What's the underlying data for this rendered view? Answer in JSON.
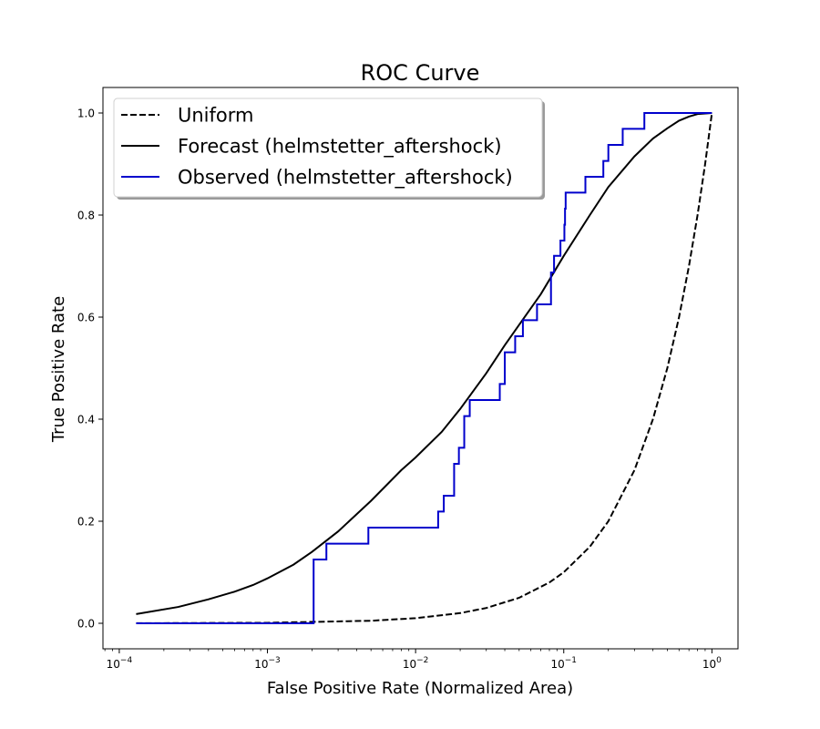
{
  "chart_data": {
    "type": "line",
    "title": "ROC Curve",
    "xlabel": "False Positive Rate (Normalized Area)",
    "ylabel": "True Positive Rate",
    "xscale": "log",
    "xlim": [
      7.76e-05,
      1.5
    ],
    "ylim": [
      -0.05,
      1.05
    ],
    "x_ticks": [
      {
        "value": 0.0001,
        "base": "10",
        "exp": "−4"
      },
      {
        "value": 0.001,
        "base": "10",
        "exp": "−3"
      },
      {
        "value": 0.01,
        "base": "10",
        "exp": "−2"
      },
      {
        "value": 0.1,
        "base": "10",
        "exp": "−1"
      },
      {
        "value": 1,
        "base": "10",
        "exp": "0"
      }
    ],
    "y_ticks": [
      {
        "value": 0.0,
        "label": "0.0"
      },
      {
        "value": 0.2,
        "label": "0.2"
      },
      {
        "value": 0.4,
        "label": "0.4"
      },
      {
        "value": 0.6,
        "label": "0.6"
      },
      {
        "value": 0.8,
        "label": "0.8"
      },
      {
        "value": 1.0,
        "label": "1.0"
      }
    ],
    "grid": false,
    "legend_position": "top-left",
    "series": [
      {
        "name": "Uniform",
        "color": "#000000",
        "dash": "dashed",
        "x": [
          0.00013,
          0.001,
          0.005,
          0.01,
          0.02,
          0.03,
          0.05,
          0.08,
          0.1,
          0.15,
          0.2,
          0.3,
          0.4,
          0.5,
          0.6,
          0.7,
          0.8,
          0.9,
          1.0
        ],
        "y": [
          0.00013,
          0.001,
          0.005,
          0.01,
          0.02,
          0.03,
          0.05,
          0.08,
          0.1,
          0.15,
          0.2,
          0.3,
          0.4,
          0.5,
          0.6,
          0.7,
          0.8,
          0.9,
          1.0
        ]
      },
      {
        "name": "Forecast (helmstetter_aftershock)",
        "color": "#000000",
        "dash": "solid",
        "x": [
          0.00013,
          0.00025,
          0.0004,
          0.0006,
          0.0008,
          0.001,
          0.0015,
          0.002,
          0.003,
          0.005,
          0.008,
          0.01,
          0.015,
          0.02,
          0.03,
          0.04,
          0.05,
          0.07,
          0.1,
          0.15,
          0.2,
          0.3,
          0.4,
          0.5,
          0.6,
          0.7,
          0.8,
          1.0
        ],
        "y": [
          0.018,
          0.032,
          0.047,
          0.062,
          0.075,
          0.088,
          0.115,
          0.14,
          0.18,
          0.24,
          0.3,
          0.325,
          0.375,
          0.42,
          0.49,
          0.545,
          0.585,
          0.645,
          0.72,
          0.8,
          0.855,
          0.915,
          0.95,
          0.97,
          0.985,
          0.993,
          0.998,
          1.0
        ]
      },
      {
        "name": "Observed (helmstetter_aftershock)",
        "color": "#0000cc",
        "dash": "solid",
        "step": true,
        "x": [
          0.00013,
          0.00205,
          0.0025,
          0.0048,
          0.0142,
          0.0155,
          0.0182,
          0.0196,
          0.0213,
          0.0232,
          0.0238,
          0.037,
          0.04,
          0.047,
          0.053,
          0.062,
          0.066,
          0.082,
          0.086,
          0.095,
          0.101,
          0.102,
          0.103,
          0.14,
          0.185,
          0.188,
          0.2,
          0.25,
          0.35,
          1.0
        ],
        "y": [
          0.0,
          0.125,
          0.156,
          0.1875,
          0.219,
          0.25,
          0.3125,
          0.344,
          0.406,
          0.4375,
          0.4375,
          0.469,
          0.531,
          0.5625,
          0.594,
          0.594,
          0.625,
          0.6875,
          0.72,
          0.75,
          0.781,
          0.8125,
          0.844,
          0.875,
          0.906,
          0.906,
          0.9375,
          0.969,
          1.0,
          1.0
        ]
      }
    ]
  }
}
